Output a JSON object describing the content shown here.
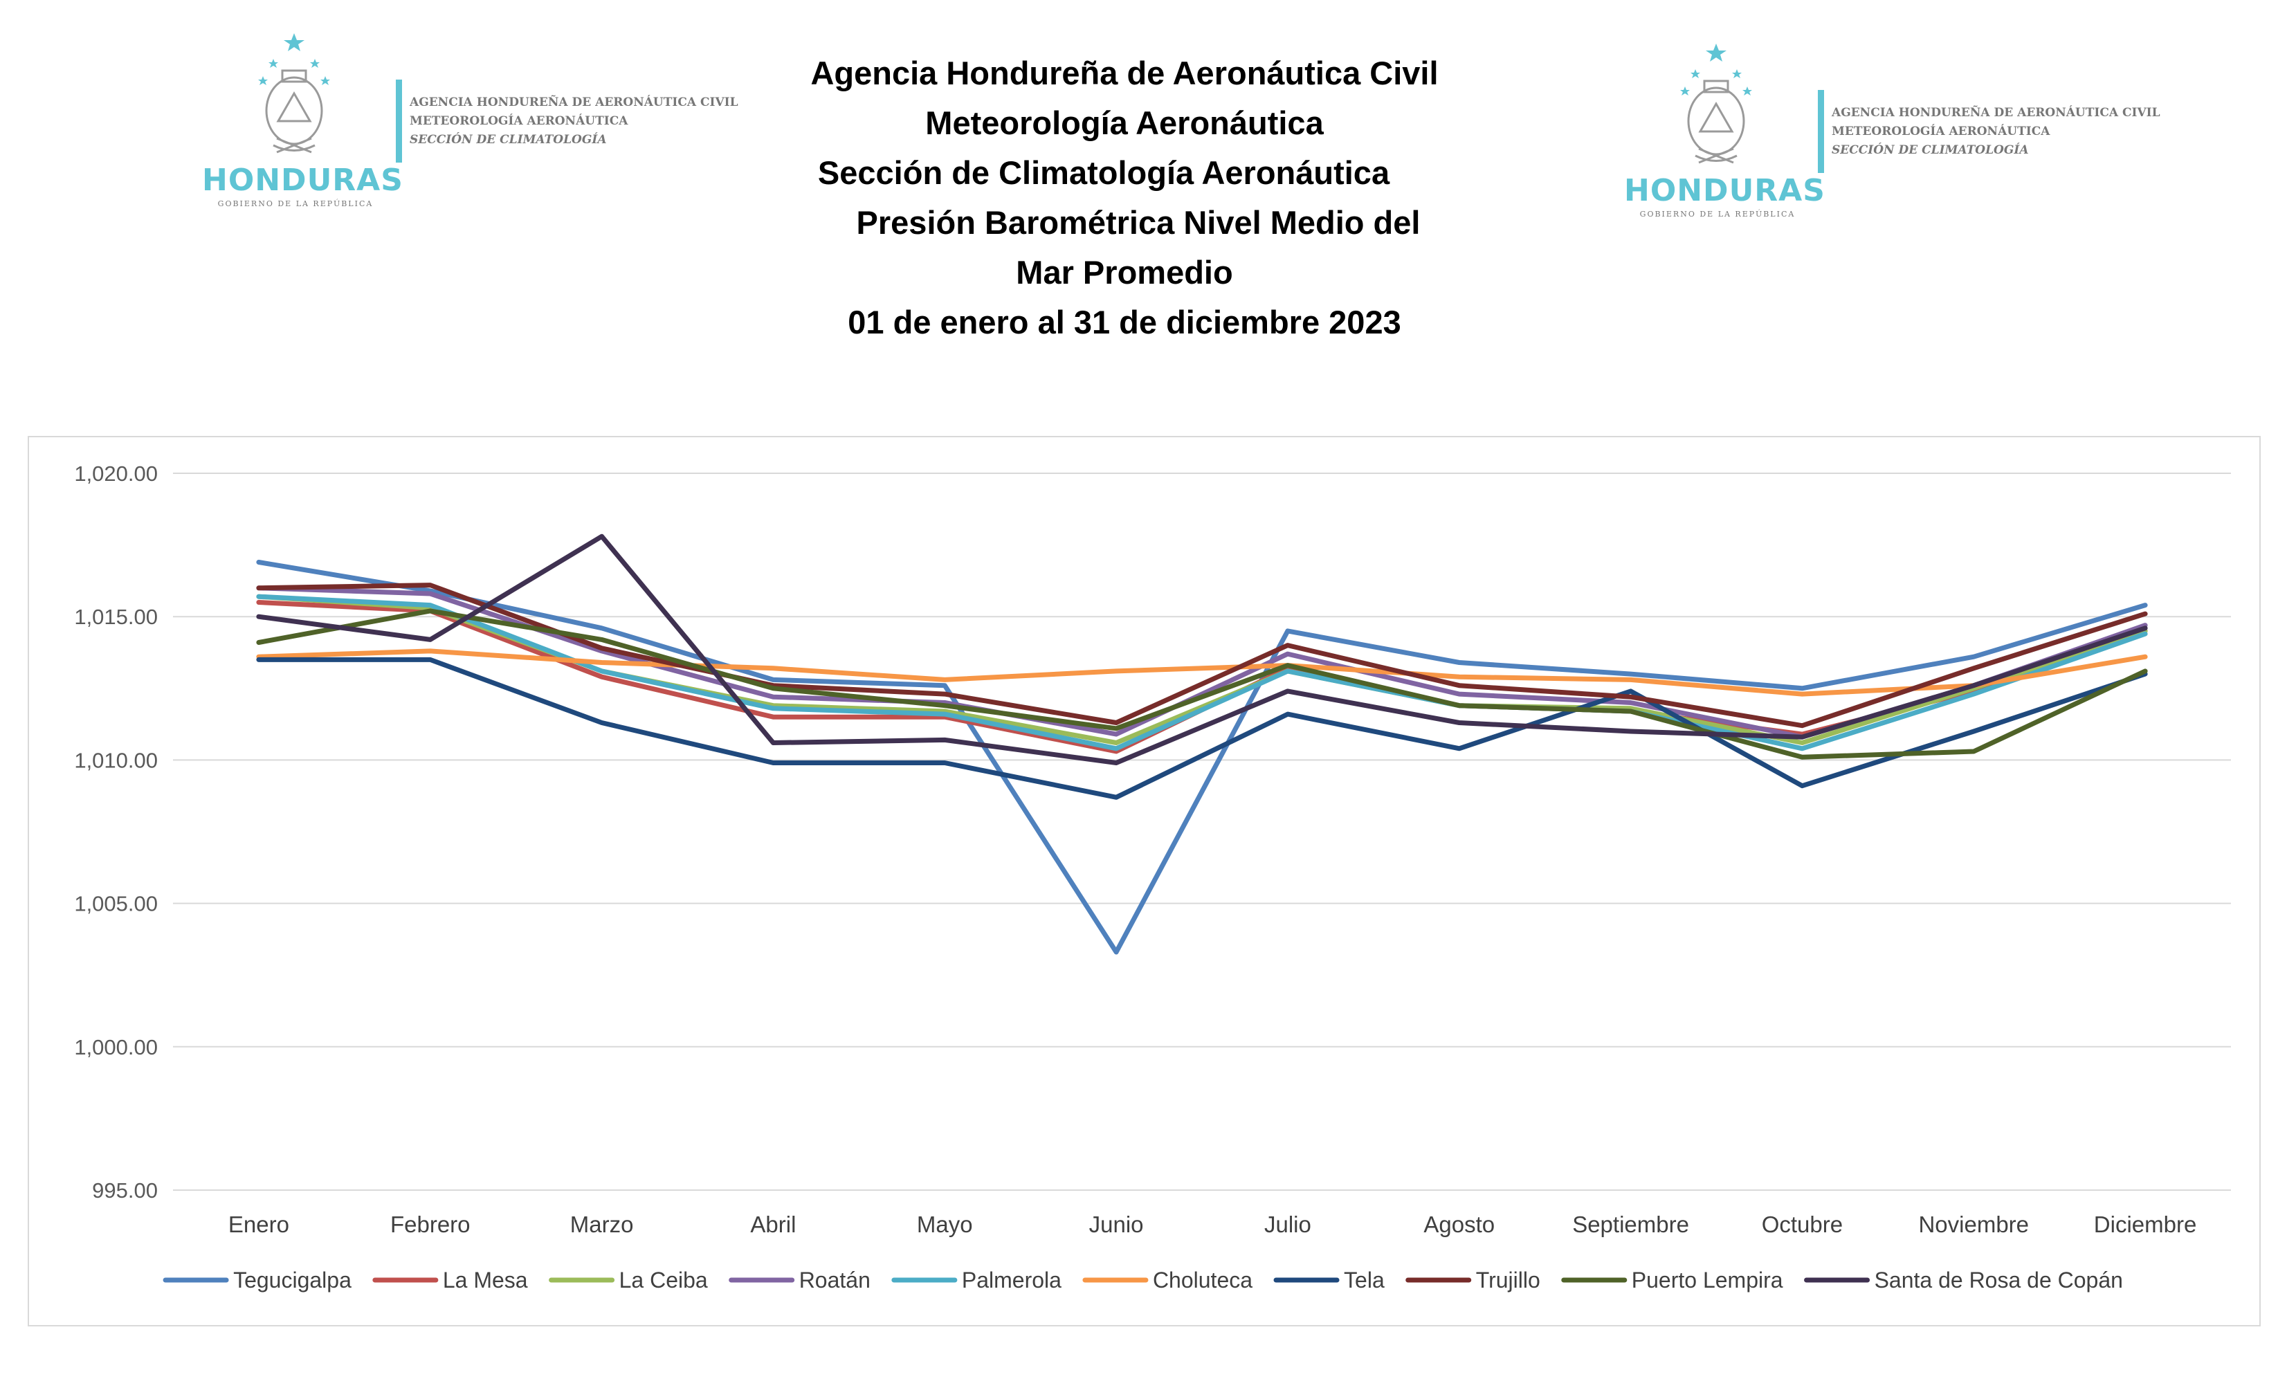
{
  "header": {
    "title_lines": [
      "Agencia Hondureña de Aeronáutica Civil",
      "Meteorología Aeronáutica",
      "Sección de Climatología Aeronáutica",
      "Presión Barométrica Nivel Medio del",
      "Mar Promedio",
      "01 de enero al 31 de diciembre 2023"
    ]
  },
  "logos": {
    "left": {
      "brand": "HONDURAS",
      "sub": "GOBIERNO DE LA REPÚBLICA",
      "lines": [
        "AGENCIA HONDUREÑA DE AERONÁUTICA CIVIL",
        "METEOROLOGÍA AERONÁUTICA",
        "SECCIÓN DE CLIMATOLOGÍA"
      ]
    },
    "right": {
      "brand": "HONDURAS",
      "sub": "GOBIERNO DE LA REPÚBLICA",
      "lines": [
        "AGENCIA HONDUREÑA DE AERONÁUTICA CIVIL",
        "METEOROLOGÍA AERONÁUTICA",
        "SECCIÓN DE CLIMATOLOGÍA"
      ]
    },
    "accent_color": "#5fc4d4"
  },
  "chart_data": {
    "type": "line",
    "title": "",
    "xlabel": "",
    "ylabel": "",
    "ylim": [
      995,
      1020
    ],
    "yticks": [
      995,
      1000,
      1005,
      1010,
      1015,
      1020
    ],
    "ytick_labels": [
      "995.00",
      "1,000.00",
      "1,005.00",
      "1,010.00",
      "1,015.00",
      "1,020.00"
    ],
    "grid": true,
    "legend_position": "bottom",
    "categories": [
      "Enero",
      "Febrero",
      "Marzo",
      "Abril",
      "Mayo",
      "Junio",
      "Julio",
      "Agosto",
      "Septiembre",
      "Octubre",
      "Noviembre",
      "Diciembre"
    ],
    "series": [
      {
        "name": "Tegucigalpa",
        "color": "#4f81bd",
        "values": [
          1016.9,
          1015.9,
          1014.6,
          1012.8,
          1012.6,
          1003.3,
          1014.5,
          1013.4,
          1013.0,
          1012.5,
          1013.6,
          1015.4
        ]
      },
      {
        "name": "La Mesa",
        "color": "#c0504d",
        "values": [
          1015.5,
          1015.2,
          1012.9,
          1011.5,
          1011.5,
          1010.3,
          1013.2,
          1011.9,
          1011.7,
          1010.9,
          1012.4,
          1014.5
        ]
      },
      {
        "name": "La Ceiba",
        "color": "#9bbb59",
        "values": [
          1015.7,
          1015.3,
          1013.1,
          1011.9,
          1011.7,
          1010.6,
          1013.1,
          1011.9,
          1011.8,
          1010.6,
          1012.5,
          1014.5
        ]
      },
      {
        "name": "Roatán",
        "color": "#8064a2",
        "values": [
          1016.0,
          1015.8,
          1013.8,
          1012.2,
          1012.0,
          1010.9,
          1013.7,
          1012.3,
          1012.0,
          1010.8,
          1012.6,
          1014.7
        ]
      },
      {
        "name": "Palmerola",
        "color": "#4bacc6",
        "values": [
          1015.7,
          1015.4,
          1013.1,
          1011.8,
          1011.6,
          1010.4,
          1013.1,
          1011.9,
          1011.7,
          1010.4,
          1012.3,
          1014.4
        ]
      },
      {
        "name": "Choluteca",
        "color": "#f79646",
        "values": [
          1013.6,
          1013.8,
          1013.4,
          1013.2,
          1012.8,
          1013.1,
          1013.3,
          1012.9,
          1012.8,
          1012.3,
          1012.6,
          1013.6
        ]
      },
      {
        "name": "Tela",
        "color": "#1f497d",
        "values": [
          1013.5,
          1013.5,
          1011.3,
          1009.9,
          1009.9,
          1008.7,
          1011.6,
          1010.4,
          1012.4,
          1009.1,
          1011.0,
          1013.0
        ]
      },
      {
        "name": "Trujillo",
        "color": "#772c2a",
        "values": [
          1016.0,
          1016.1,
          1013.9,
          1012.6,
          1012.3,
          1011.3,
          1014.0,
          1012.6,
          1012.2,
          1011.2,
          1013.2,
          1015.1
        ]
      },
      {
        "name": "Puerto Lempira",
        "color": "#4f6228",
        "values": [
          1014.1,
          1015.2,
          1014.2,
          1012.5,
          1011.9,
          1011.1,
          1013.3,
          1011.9,
          1011.7,
          1010.1,
          1010.3,
          1013.1
        ]
      },
      {
        "name": "Santa de Rosa de Copán",
        "color": "#3f3151",
        "values": [
          1015.0,
          1014.2,
          1017.8,
          1010.6,
          1010.7,
          1009.9,
          1012.4,
          1011.3,
          1011.0,
          1010.8,
          1012.6,
          1014.6
        ]
      }
    ]
  }
}
